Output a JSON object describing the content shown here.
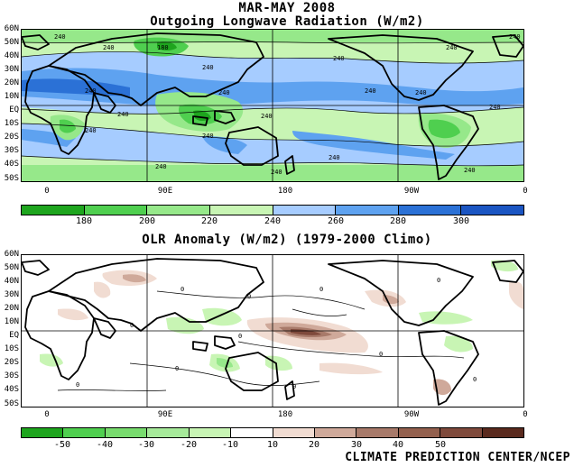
{
  "header": {
    "period": "MAR-MAY 2008",
    "olr_title": "Outgoing Longwave Radiation (W/m2)",
    "anom_title": "OLR Anomaly (W/m2) (1979-2000 Climo)"
  },
  "lat_labels": [
    "60N",
    "50N",
    "40N",
    "30N",
    "20N",
    "10N",
    "EQ",
    "10S",
    "20S",
    "30S",
    "40S",
    "50S"
  ],
  "lon_labels": [
    "0",
    "90E",
    "180",
    "90W",
    "0"
  ],
  "olr_map": {
    "contour_labels": [
      "180",
      "240",
      "240",
      "240",
      "240",
      "240",
      "240",
      "240",
      "240",
      "240",
      "240",
      "240",
      "240",
      "240",
      "240",
      "240",
      "240",
      "240",
      "240",
      "240"
    ],
    "colors": {
      "c180": "#1ea51e",
      "c200": "#4fcf4f",
      "c220": "#96e88a",
      "c240": "#c8f5b4",
      "c260": "#a6ccff",
      "c280": "#5ea2f0",
      "c300": "#2b71d6",
      "c310": "#1b55c2"
    }
  },
  "olr_colorbar": {
    "colors": [
      "#1ea51e",
      "#4fcf4f",
      "#96e88a",
      "#c8f5b4",
      "#a6ccff",
      "#5ea2f0",
      "#2b71d6",
      "#1b55c2"
    ],
    "ticks": [
      "180",
      "200",
      "220",
      "240",
      "260",
      "280",
      "300"
    ]
  },
  "anom_map": {
    "contour_labels": [
      "0",
      "0",
      "0",
      "0",
      "0",
      "0",
      "0",
      "0",
      "0",
      "0",
      "0"
    ],
    "colors": {
      "neg10": "#c8f5b4",
      "neg20": "#96e88a",
      "pos10": "#f1dcd2",
      "pos20": "#cfa99a",
      "pos30": "#a87a6a",
      "pos40": "#7f4a3c"
    }
  },
  "anom_colorbar": {
    "colors": [
      "#1ea51e",
      "#4fcf4f",
      "#78dc6e",
      "#a6ea9a",
      "#c8f5b4",
      "#ffffff",
      "#f1dcd2",
      "#cfa99a",
      "#a87a6a",
      "#93604e",
      "#7f4a3c",
      "#5a2a1e"
    ],
    "ticks": [
      "-50",
      "-40",
      "-30",
      "-20",
      "-10",
      "10",
      "20",
      "30",
      "40",
      "50"
    ]
  },
  "footer": {
    "credit": "CLIMATE PREDICTION CENTER/NCEP"
  }
}
